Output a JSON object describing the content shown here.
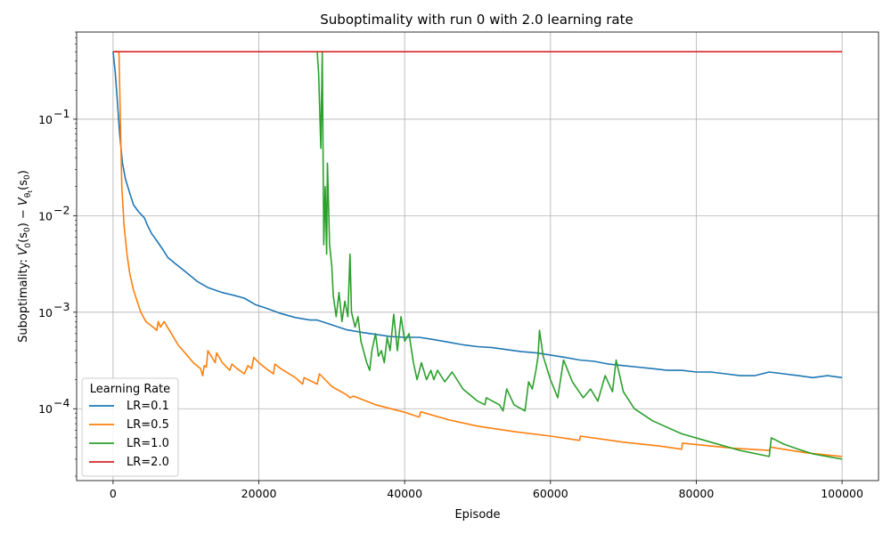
{
  "chart_data": {
    "type": "line",
    "title": "Suboptimality with run 0 with 2.0 learning rate",
    "xlabel": "Episode",
    "ylabel": "Suboptimality: V*₀(s₀) − V_θₜ(s₀)",
    "ylabel_parts": {
      "prefix": "Suboptimality: ",
      "v": "V",
      "star": "*",
      "zero": "0",
      "s0": "(s",
      "s0sub": "0",
      "close": ")",
      "minus": " − ",
      "theta": "θ",
      "t": "t"
    },
    "y_scale": "log",
    "xlim": [
      -5000,
      105000
    ],
    "ylim": [
      1.8e-05,
      0.8
    ],
    "grid": true,
    "x_ticks": [
      0,
      20000,
      40000,
      60000,
      80000,
      100000
    ],
    "x_tick_labels": [
      "0",
      "20000",
      "40000",
      "60000",
      "80000",
      "100000"
    ],
    "y_ticks": [
      0.0001,
      0.001,
      0.01,
      0.1
    ],
    "y_tick_labels": [
      {
        "base": "10",
        "exp": "−4"
      },
      {
        "base": "10",
        "exp": "−3"
      },
      {
        "base": "10",
        "exp": "−2"
      },
      {
        "base": "10",
        "exp": "−1"
      }
    ],
    "legend": {
      "title": "Learning Rate",
      "placement": "lower-left"
    },
    "series": [
      {
        "name": "LR=0.1",
        "color": "#1f77b4",
        "points": [
          [
            0,
            0.5
          ],
          [
            300,
            0.3
          ],
          [
            600,
            0.15
          ],
          [
            900,
            0.07
          ],
          [
            1300,
            0.035
          ],
          [
            1700,
            0.024
          ],
          [
            2200,
            0.018
          ],
          [
            2800,
            0.013
          ],
          [
            3500,
            0.011
          ],
          [
            4300,
            0.0095
          ],
          [
            4700,
            0.008
          ],
          [
            5300,
            0.0065
          ],
          [
            6000,
            0.0055
          ],
          [
            6800,
            0.0045
          ],
          [
            7500,
            0.0037
          ],
          [
            8500,
            0.0032
          ],
          [
            10000,
            0.0026
          ],
          [
            11500,
            0.0021
          ],
          [
            13000,
            0.0018
          ],
          [
            15000,
            0.0016
          ],
          [
            16500,
            0.0015
          ],
          [
            18000,
            0.0014
          ],
          [
            19500,
            0.0012
          ],
          [
            21000,
            0.0011
          ],
          [
            23000,
            0.00097
          ],
          [
            25000,
            0.00088
          ],
          [
            27000,
            0.00083
          ],
          [
            28000,
            0.00083
          ],
          [
            30000,
            0.00074
          ],
          [
            32000,
            0.00066
          ],
          [
            34000,
            0.00062
          ],
          [
            36000,
            0.00059
          ],
          [
            38000,
            0.00056
          ],
          [
            40000,
            0.00055
          ],
          [
            42000,
            0.00055
          ],
          [
            44000,
            0.00052
          ],
          [
            46000,
            0.00049
          ],
          [
            48000,
            0.00046
          ],
          [
            50000,
            0.00044
          ],
          [
            52000,
            0.00043
          ],
          [
            54000,
            0.00041
          ],
          [
            56000,
            0.00039
          ],
          [
            58000,
            0.00038
          ],
          [
            60000,
            0.00036
          ],
          [
            62000,
            0.00034
          ],
          [
            64000,
            0.00032
          ],
          [
            66000,
            0.00031
          ],
          [
            68000,
            0.00029
          ],
          [
            70000,
            0.00028
          ],
          [
            72000,
            0.00027
          ],
          [
            74000,
            0.00026
          ],
          [
            76000,
            0.00025
          ],
          [
            78000,
            0.00025
          ],
          [
            80000,
            0.00024
          ],
          [
            82000,
            0.00024
          ],
          [
            84000,
            0.00023
          ],
          [
            86000,
            0.00022
          ],
          [
            88000,
            0.00022
          ],
          [
            90000,
            0.00024
          ],
          [
            92000,
            0.00023
          ],
          [
            94000,
            0.00022
          ],
          [
            96000,
            0.00021
          ],
          [
            98000,
            0.00022
          ],
          [
            100000,
            0.00021
          ]
        ]
      },
      {
        "name": "LR=0.5",
        "color": "#ff7f0e",
        "points": [
          [
            0,
            0.5
          ],
          [
            800,
            0.5
          ],
          [
            1000,
            0.1
          ],
          [
            1200,
            0.02
          ],
          [
            1500,
            0.008
          ],
          [
            1900,
            0.004
          ],
          [
            2300,
            0.0025
          ],
          [
            2800,
            0.0017
          ],
          [
            3300,
            0.0013
          ],
          [
            3800,
            0.001
          ],
          [
            4500,
            0.0008
          ],
          [
            5500,
            0.0007
          ],
          [
            6000,
            0.00065
          ],
          [
            6200,
            0.0008
          ],
          [
            6500,
            0.0007
          ],
          [
            7000,
            0.0008
          ],
          [
            8000,
            0.0006
          ],
          [
            9000,
            0.00045
          ],
          [
            10000,
            0.00037
          ],
          [
            11000,
            0.0003
          ],
          [
            12000,
            0.00026
          ],
          [
            12300,
            0.00022
          ],
          [
            12500,
            0.00028
          ],
          [
            12800,
            0.00027
          ],
          [
            13000,
            0.0004
          ],
          [
            14000,
            0.0003
          ],
          [
            14200,
            0.00038
          ],
          [
            15000,
            0.0003
          ],
          [
            16000,
            0.00025
          ],
          [
            16300,
            0.00029
          ],
          [
            17000,
            0.00026
          ],
          [
            18000,
            0.00023
          ],
          [
            18500,
            0.00028
          ],
          [
            19000,
            0.00026
          ],
          [
            19300,
            0.00034
          ],
          [
            20000,
            0.0003
          ],
          [
            21000,
            0.00026
          ],
          [
            22000,
            0.00023
          ],
          [
            22200,
            0.00029
          ],
          [
            23000,
            0.00026
          ],
          [
            25000,
            0.00021
          ],
          [
            26000,
            0.00018
          ],
          [
            26200,
            0.00021
          ],
          [
            28000,
            0.00018
          ],
          [
            28300,
            0.00023
          ],
          [
            30000,
            0.00017
          ],
          [
            32000,
            0.00014
          ],
          [
            32500,
            0.00013
          ],
          [
            33000,
            0.000135
          ],
          [
            36000,
            0.00011
          ],
          [
            40000,
            9.2e-05
          ],
          [
            42000,
            8.2e-05
          ],
          [
            42200,
            9.3e-05
          ],
          [
            46000,
            7.7e-05
          ],
          [
            50000,
            6.6e-05
          ],
          [
            55000,
            5.8e-05
          ],
          [
            60000,
            5.2e-05
          ],
          [
            64000,
            4.7e-05
          ],
          [
            64100,
            5.2e-05
          ],
          [
            70000,
            4.5e-05
          ],
          [
            75000,
            4.1e-05
          ],
          [
            78000,
            3.8e-05
          ],
          [
            78100,
            4.4e-05
          ],
          [
            85000,
            3.9e-05
          ],
          [
            90000,
            3.7e-05
          ],
          [
            90200,
            4e-05
          ],
          [
            95000,
            3.5e-05
          ],
          [
            100000,
            3.2e-05
          ]
        ]
      },
      {
        "name": "LR=1.0",
        "color": "#2ca02c",
        "points": [
          [
            28000,
            0.5
          ],
          [
            28200,
            0.3
          ],
          [
            28500,
            0.05
          ],
          [
            28700,
            0.5
          ],
          [
            28900,
            0.005
          ],
          [
            29100,
            0.02
          ],
          [
            29300,
            0.004
          ],
          [
            29400,
            0.035
          ],
          [
            29700,
            0.005
          ],
          [
            30000,
            0.003
          ],
          [
            30200,
            0.0015
          ],
          [
            30600,
            0.0009
          ],
          [
            31000,
            0.0016
          ],
          [
            31400,
            0.0008
          ],
          [
            31800,
            0.0013
          ],
          [
            32200,
            0.0009
          ],
          [
            32500,
            0.004
          ],
          [
            32700,
            0.001
          ],
          [
            33200,
            0.0007
          ],
          [
            33600,
            0.0009
          ],
          [
            34000,
            0.0005
          ],
          [
            34800,
            0.0003
          ],
          [
            35200,
            0.00025
          ],
          [
            35500,
            0.0004
          ],
          [
            36000,
            0.0006
          ],
          [
            36400,
            0.00035
          ],
          [
            36800,
            0.0004
          ],
          [
            37200,
            0.0003
          ],
          [
            37600,
            0.00055
          ],
          [
            38000,
            0.0004
          ],
          [
            38500,
            0.00095
          ],
          [
            39000,
            0.0004
          ],
          [
            39500,
            0.0009
          ],
          [
            40000,
            0.0005
          ],
          [
            40600,
            0.0006
          ],
          [
            41200,
            0.0003
          ],
          [
            41700,
            0.0002
          ],
          [
            42300,
            0.0003
          ],
          [
            43000,
            0.0002
          ],
          [
            43600,
            0.00025
          ],
          [
            44000,
            0.0002
          ],
          [
            44500,
            0.00025
          ],
          [
            45500,
            0.00019
          ],
          [
            46500,
            0.00024
          ],
          [
            48000,
            0.00016
          ],
          [
            50000,
            0.00012
          ],
          [
            51000,
            0.00011
          ],
          [
            51200,
            0.00013
          ],
          [
            53000,
            0.00011
          ],
          [
            53500,
            9.5e-05
          ],
          [
            54000,
            0.00016
          ],
          [
            55000,
            0.00011
          ],
          [
            56500,
            9.5e-05
          ],
          [
            57000,
            0.00019
          ],
          [
            57500,
            0.00016
          ],
          [
            58000,
            0.00025
          ],
          [
            58300,
            0.00035
          ],
          [
            58500,
            0.00065
          ],
          [
            59000,
            0.00035
          ],
          [
            60000,
            0.0002
          ],
          [
            61000,
            0.00013
          ],
          [
            61800,
            0.00032
          ],
          [
            63000,
            0.00019
          ],
          [
            64500,
            0.00013
          ],
          [
            65500,
            0.00016
          ],
          [
            66500,
            0.00012
          ],
          [
            67500,
            0.00022
          ],
          [
            68500,
            0.00015
          ],
          [
            69000,
            0.00032
          ],
          [
            70000,
            0.00015
          ],
          [
            71500,
            0.0001
          ],
          [
            74000,
            7.5e-05
          ],
          [
            78000,
            5.5e-05
          ],
          [
            82000,
            4.5e-05
          ],
          [
            86000,
            3.7e-05
          ],
          [
            90000,
            3.2e-05
          ],
          [
            90300,
            5e-05
          ],
          [
            92000,
            4.3e-05
          ],
          [
            94000,
            3.8e-05
          ],
          [
            96000,
            3.4e-05
          ],
          [
            98000,
            3.2e-05
          ],
          [
            100000,
            3e-05
          ]
        ]
      },
      {
        "name": "LR=2.0",
        "color": "#d62728",
        "points": [
          [
            0,
            0.5
          ],
          [
            100000,
            0.5
          ]
        ]
      }
    ]
  }
}
